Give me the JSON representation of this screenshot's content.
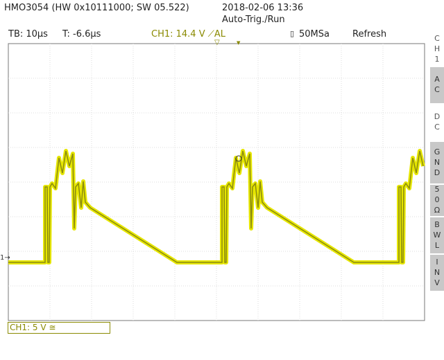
{
  "header": {
    "title": "HMO3054 (HW 0x10111000; SW 05.522)",
    "datetime": "2018-02-06 13:36",
    "trigger_state": "Auto-Trig./Run"
  },
  "status": {
    "timebase": "TB: 10µs",
    "trigger_time": "T: -6.6µs",
    "channel": "CH1: 14.4 V ⟋AL",
    "sample_rate": "50MSa",
    "mode": "Refresh"
  },
  "menu": {
    "title": "CH1",
    "buttons": [
      "AC",
      "DC",
      "GND",
      "50Ω",
      "BWL",
      "INV"
    ]
  },
  "footer": {
    "channel_scale": "CH1: 5 V ≅"
  }
}
